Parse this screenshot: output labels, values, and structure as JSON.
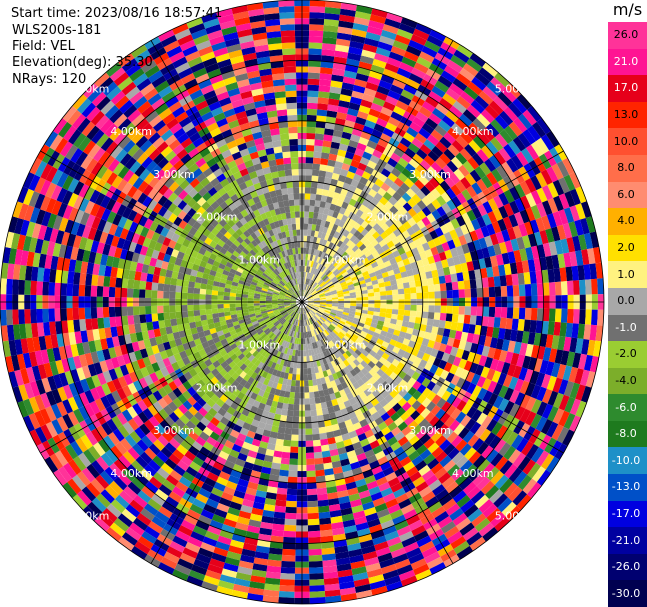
{
  "header": {
    "start_time": "Start time: 2023/08/16 18:57:41",
    "instrument": "WLS200s-181",
    "field": "Field: VEL",
    "elevation": "Elevation(deg): 35.30",
    "nrays": "NRays: 120"
  },
  "chart_data": {
    "type": "heatmap",
    "subtype": "ppi-polar",
    "title": "",
    "field": "VEL",
    "elevation_deg": 35.3,
    "n_rays": 120,
    "range_rings_km": [
      1,
      2,
      3,
      4,
      5
    ],
    "ring_label_texts": [
      "1.00km",
      "2.00km",
      "3.00km",
      "4.00km",
      "5.00km"
    ],
    "colorbar": {
      "unit": "m/s",
      "ticks": [
        "26.0",
        "21.0",
        "17.0",
        "13.0",
        "10.0",
        "8.0",
        "6.0",
        "4.0",
        "2.0",
        "1.0",
        "0.0",
        "-1.0",
        "-2.0",
        "-4.0",
        "-6.0",
        "-8.0",
        "-10.0",
        "-13.0",
        "-17.0",
        "-21.0",
        "-26.0",
        "-30.0"
      ],
      "bins": [
        {
          "min": 26,
          "max": 30,
          "color": "#ff3399"
        },
        {
          "min": 21,
          "max": 26,
          "color": "#ff1493"
        },
        {
          "min": 17,
          "max": 21,
          "color": "#e6001a"
        },
        {
          "min": 13,
          "max": 17,
          "color": "#ff2400"
        },
        {
          "min": 10,
          "max": 13,
          "color": "#ff5030"
        },
        {
          "min": 8,
          "max": 10,
          "color": "#ff6e4a"
        },
        {
          "min": 6,
          "max": 8,
          "color": "#ff8c70"
        },
        {
          "min": 4,
          "max": 6,
          "color": "#ffb000"
        },
        {
          "min": 2,
          "max": 4,
          "color": "#ffe000"
        },
        {
          "min": 1,
          "max": 2,
          "color": "#fff280"
        },
        {
          "min": 0,
          "max": 1,
          "color": "#a8a8a8"
        },
        {
          "min": -1,
          "max": 0,
          "color": "#707070"
        },
        {
          "min": -2,
          "max": -1,
          "color": "#9acd32"
        },
        {
          "min": -4,
          "max": -2,
          "color": "#7cae2a"
        },
        {
          "min": -6,
          "max": -4,
          "color": "#2e8b2e"
        },
        {
          "min": -8,
          "max": -6,
          "color": "#1e7a1e"
        },
        {
          "min": -10,
          "max": -8,
          "color": "#1e90c8"
        },
        {
          "min": -13,
          "max": -10,
          "color": "#0050c8"
        },
        {
          "min": -17,
          "max": -13,
          "color": "#0000e0"
        },
        {
          "min": -21,
          "max": -17,
          "color": "#0000a0"
        },
        {
          "min": -26,
          "max": -21,
          "color": "#000070"
        },
        {
          "min": -30,
          "max": -26,
          "color": "#000050"
        }
      ]
    },
    "grid": true
  }
}
